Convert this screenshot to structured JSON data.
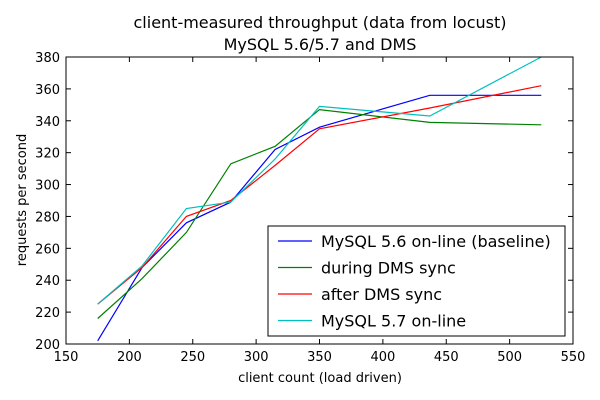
{
  "chart_data": {
    "type": "line",
    "title": "client-measured throughput (data from locust)",
    "subtitle": "MySQL 5.6/5.7 and DMS",
    "xlabel": "client count (load driven)",
    "ylabel": "requests per second",
    "xlim": [
      150,
      550
    ],
    "ylim": [
      200,
      380
    ],
    "xticks": [
      150,
      200,
      250,
      300,
      350,
      400,
      450,
      500,
      550
    ],
    "yticks": [
      200,
      220,
      240,
      260,
      280,
      300,
      320,
      340,
      360,
      380
    ],
    "grid": false,
    "legend_position": "lower-right",
    "series": [
      {
        "name": "MySQL 5.6 on-line (baseline)",
        "color": "#0000ff",
        "points": [
          [
            175,
            202
          ],
          [
            210,
            248
          ],
          [
            245,
            276
          ],
          [
            280,
            289
          ],
          [
            315,
            322
          ],
          [
            350,
            336
          ],
          [
            437,
            356
          ],
          [
            525,
            356
          ]
        ]
      },
      {
        "name": "during DMS sync",
        "color": "#008000",
        "points": [
          [
            175,
            216
          ],
          [
            210,
            241
          ],
          [
            245,
            270
          ],
          [
            280,
            313
          ],
          [
            315,
            324
          ],
          [
            350,
            347
          ],
          [
            437,
            339
          ],
          [
            525,
            337.5
          ]
        ]
      },
      {
        "name": "after DMS sync",
        "color": "#ff0000",
        "points": [
          [
            175,
            225
          ],
          [
            210,
            248
          ],
          [
            245,
            280
          ],
          [
            280,
            290
          ],
          [
            315,
            312
          ],
          [
            350,
            335
          ],
          [
            437,
            348
          ],
          [
            525,
            362
          ]
        ]
      },
      {
        "name": "MySQL 5.7 on-line",
        "color": "#00bfbf",
        "points": [
          [
            175,
            225
          ],
          [
            210,
            249
          ],
          [
            245,
            285
          ],
          [
            280,
            289
          ],
          [
            315,
            316
          ],
          [
            350,
            349
          ],
          [
            437,
            343
          ],
          [
            525,
            380
          ]
        ]
      }
    ]
  }
}
